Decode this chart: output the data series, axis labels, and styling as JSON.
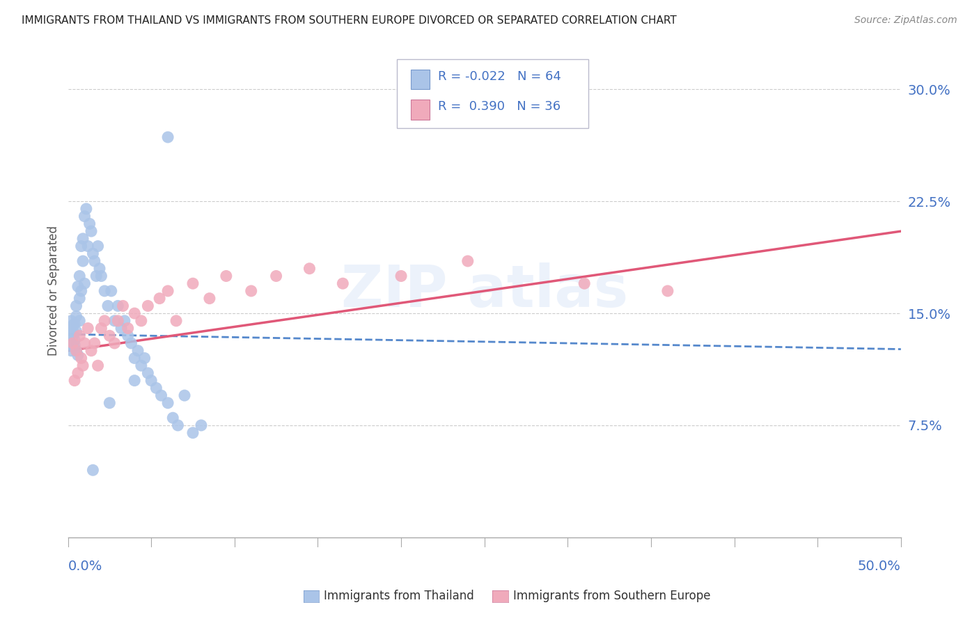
{
  "title": "IMMIGRANTS FROM THAILAND VS IMMIGRANTS FROM SOUTHERN EUROPE DIVORCED OR SEPARATED CORRELATION CHART",
  "source": "Source: ZipAtlas.com",
  "ylabel": "Divorced or Separated",
  "color_thailand": "#aac4e8",
  "color_thailand_line": "#5588cc",
  "color_se": "#f0aabb",
  "color_se_line": "#e05878",
  "legend1_r": "-0.022",
  "legend1_n": "64",
  "legend2_r": "0.390",
  "legend2_n": "36",
  "xmin": 0.0,
  "xmax": 0.5,
  "ymin": 0.0,
  "ymax": 0.33,
  "ytick_vals": [
    0.075,
    0.15,
    0.225,
    0.3
  ],
  "ytick_labels": [
    "7.5%",
    "15.0%",
    "22.5%",
    "30.0%"
  ],
  "tick_color": "#4472c4",
  "grid_color": "#cccccc",
  "title_color": "#222222",
  "legend_label_1": "Immigrants from Thailand",
  "legend_label_2": "Immigrants from Southern Europe",
  "thai_x": [
    0.001,
    0.001,
    0.002,
    0.002,
    0.002,
    0.003,
    0.003,
    0.003,
    0.003,
    0.004,
    0.004,
    0.004,
    0.005,
    0.005,
    0.005,
    0.005,
    0.006,
    0.006,
    0.007,
    0.007,
    0.007,
    0.008,
    0.008,
    0.009,
    0.009,
    0.01,
    0.01,
    0.011,
    0.012,
    0.013,
    0.014,
    0.015,
    0.016,
    0.017,
    0.018,
    0.019,
    0.02,
    0.022,
    0.024,
    0.026,
    0.028,
    0.03,
    0.032,
    0.034,
    0.036,
    0.038,
    0.04,
    0.042,
    0.044,
    0.046,
    0.048,
    0.05,
    0.053,
    0.056,
    0.06,
    0.063,
    0.066,
    0.07,
    0.075,
    0.08,
    0.06,
    0.04,
    0.025,
    0.015
  ],
  "thai_y": [
    0.135,
    0.13,
    0.14,
    0.125,
    0.145,
    0.135,
    0.128,
    0.142,
    0.138,
    0.132,
    0.143,
    0.129,
    0.138,
    0.148,
    0.125,
    0.155,
    0.168,
    0.122,
    0.175,
    0.145,
    0.16,
    0.195,
    0.165,
    0.2,
    0.185,
    0.215,
    0.17,
    0.22,
    0.195,
    0.21,
    0.205,
    0.19,
    0.185,
    0.175,
    0.195,
    0.18,
    0.175,
    0.165,
    0.155,
    0.165,
    0.145,
    0.155,
    0.14,
    0.145,
    0.135,
    0.13,
    0.12,
    0.125,
    0.115,
    0.12,
    0.11,
    0.105,
    0.1,
    0.095,
    0.09,
    0.08,
    0.075,
    0.095,
    0.07,
    0.075,
    0.268,
    0.105,
    0.09,
    0.045
  ],
  "se_x": [
    0.003,
    0.004,
    0.005,
    0.006,
    0.007,
    0.008,
    0.009,
    0.01,
    0.012,
    0.014,
    0.016,
    0.018,
    0.02,
    0.022,
    0.025,
    0.028,
    0.03,
    0.033,
    0.036,
    0.04,
    0.044,
    0.048,
    0.055,
    0.06,
    0.065,
    0.075,
    0.085,
    0.095,
    0.11,
    0.125,
    0.145,
    0.165,
    0.2,
    0.24,
    0.31,
    0.36
  ],
  "se_y": [
    0.13,
    0.105,
    0.125,
    0.11,
    0.135,
    0.12,
    0.115,
    0.13,
    0.14,
    0.125,
    0.13,
    0.115,
    0.14,
    0.145,
    0.135,
    0.13,
    0.145,
    0.155,
    0.14,
    0.15,
    0.145,
    0.155,
    0.16,
    0.165,
    0.145,
    0.17,
    0.16,
    0.175,
    0.165,
    0.175,
    0.18,
    0.17,
    0.175,
    0.185,
    0.17,
    0.165
  ],
  "thai_line_x0": 0.0,
  "thai_line_x1": 0.5,
  "thai_line_y0": 0.136,
  "thai_line_y1": 0.126,
  "se_line_x0": 0.0,
  "se_line_x1": 0.5,
  "se_line_y0": 0.125,
  "se_line_y1": 0.205
}
